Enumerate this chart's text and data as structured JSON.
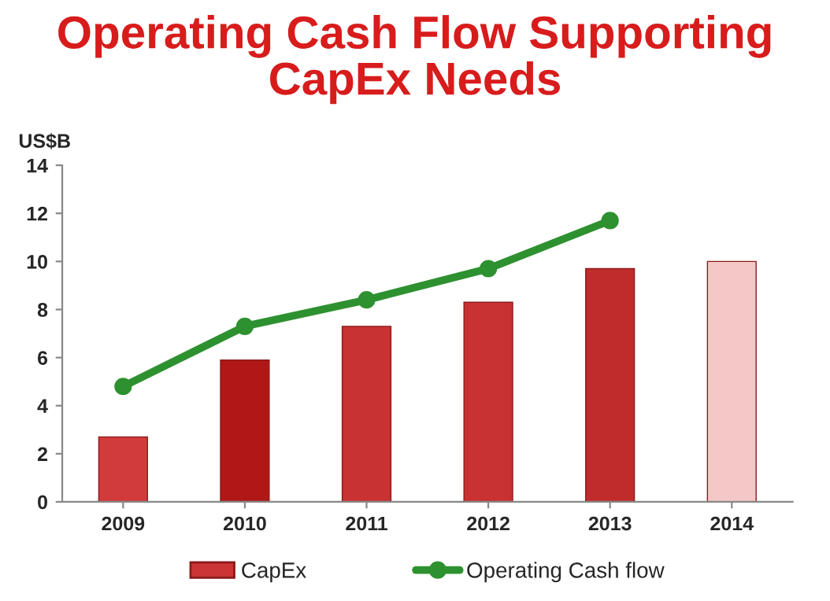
{
  "chart_data": {
    "type": "bar",
    "title": "Operating Cash Flow Supporting\nCapEx Needs",
    "ylabel": "US$B",
    "categories": [
      "2009",
      "2010",
      "2011",
      "2012",
      "2013",
      "2014"
    ],
    "series": [
      {
        "name": "CapEx",
        "color": "#cc3535",
        "colors": [
          "#d23b3b",
          "#b01818",
          "#c83232",
          "#c83232",
          "#c02c2c",
          "#f5c8c8"
        ],
        "values": [
          2.7,
          5.9,
          7.3,
          8.3,
          9.7,
          10.0
        ]
      },
      {
        "name": "Operating Cash flow",
        "type": "line",
        "color": "#2e9130",
        "values": [
          4.8,
          7.3,
          8.4,
          9.7,
          11.7,
          null
        ]
      }
    ],
    "ylim": [
      0,
      14
    ],
    "yticks": [
      0,
      2,
      4,
      6,
      8,
      10,
      12,
      14
    ],
    "grid": false,
    "legend": "bottom",
    "marker": "circle"
  }
}
